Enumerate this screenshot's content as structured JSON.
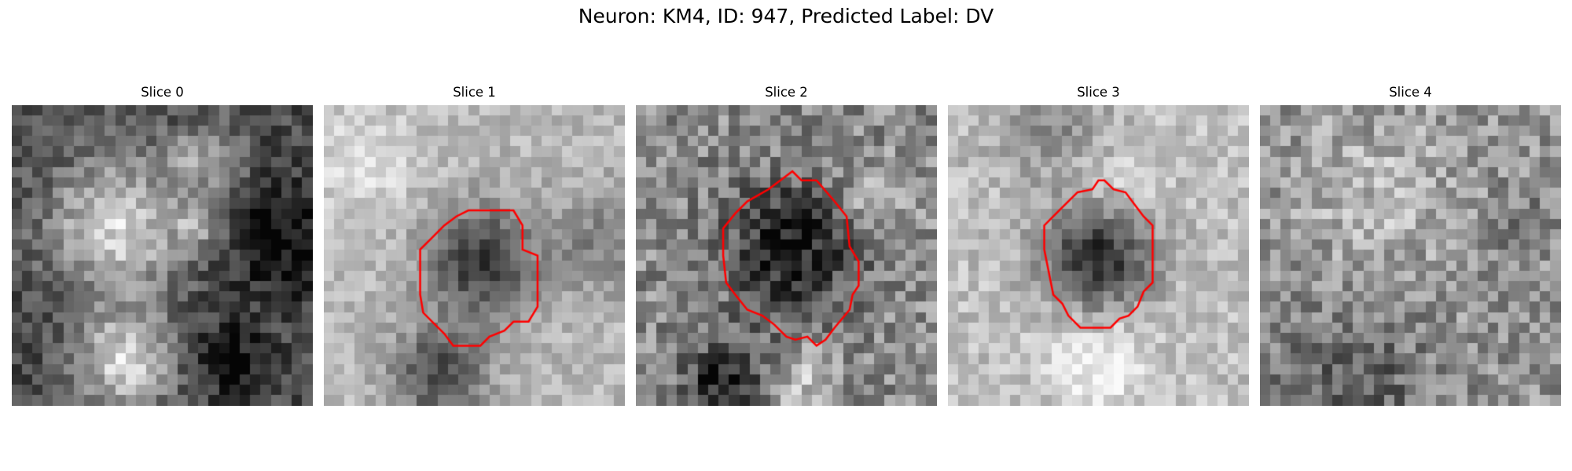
{
  "figure": {
    "title": "Neuron: KM4, ID: 947, Predicted Label: DV"
  },
  "colors": {
    "contour": "#ff0000",
    "background": "#ffffff"
  },
  "panels": [
    {
      "title": "Slice 0",
      "has_contour": false
    },
    {
      "title": "Slice 1",
      "has_contour": true
    },
    {
      "title": "Slice 2",
      "has_contour": true
    },
    {
      "title": "Slice 3",
      "has_contour": true
    },
    {
      "title": "Slice 4",
      "has_contour": false
    }
  ]
}
